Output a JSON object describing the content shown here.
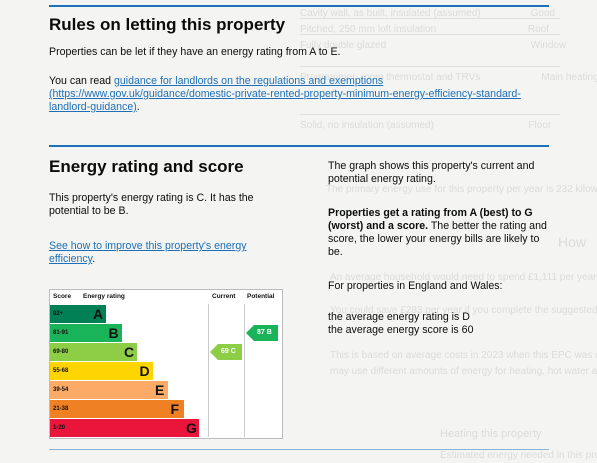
{
  "rules": {
    "title": "Rules on letting this property",
    "p1": "Properties can be let if they have an energy rating from A to E.",
    "p2_prefix": "You can read ",
    "link_text": "guidance for landlords on the regulations and exemptions",
    "link_url": "(https://www.gov.uk/guidance/domestic-private-rented-property-minimum-energy-efficiency-standard-landlord-guidance)",
    "p2_suffix": "."
  },
  "energy": {
    "title": "Energy rating and score",
    "p1": "This property's energy rating is C. It has the potential to be B.",
    "improve_link": "See how to improve this property's energy efficiency",
    "improve_suffix": "."
  },
  "side": {
    "p1": "The graph shows this property's current and potential energy rating.",
    "p2_bold": "Properties get a rating from A (best) to G (worst) and a score.",
    "p2_rest": " The better the rating and score, the lower your energy bills are likely to be.",
    "p3": "For properties in England and Wales:",
    "p4": "the average energy rating is D",
    "p5": "the average energy score is 60"
  },
  "chart_data": {
    "type": "table",
    "headers": [
      "Score",
      "Energy rating",
      "Current",
      "Potential"
    ],
    "bands": [
      {
        "score": "92+",
        "letter": "A",
        "color": "#008054"
      },
      {
        "score": "81-91",
        "letter": "B",
        "color": "#19b459"
      },
      {
        "score": "69-80",
        "letter": "C",
        "color": "#8dce46"
      },
      {
        "score": "55-68",
        "letter": "D",
        "color": "#ffd500"
      },
      {
        "score": "39-54",
        "letter": "E",
        "color": "#fcaa65"
      },
      {
        "score": "21-38",
        "letter": "F",
        "color": "#ef8023"
      },
      {
        "score": "1-20",
        "letter": "G",
        "color": "#e9153b"
      }
    ],
    "current": {
      "value": 69,
      "letter": "C",
      "label": "69 C",
      "color": "#8dce46"
    },
    "potential": {
      "value": 87,
      "letter": "B",
      "label": "87 B",
      "color": "#19b459"
    }
  }
}
